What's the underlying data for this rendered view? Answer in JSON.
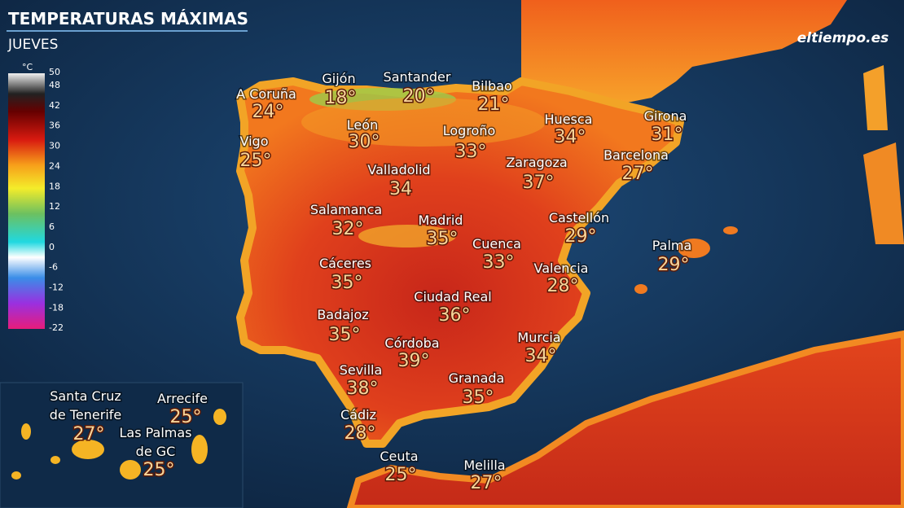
{
  "header": {
    "title": "TEMPERATURAS MÁXIMAS",
    "subtitle": "JUEVES",
    "logo": "eltiempo.es"
  },
  "legend": {
    "unit": "°C",
    "ticks": [
      50,
      48,
      42,
      36,
      30,
      24,
      18,
      12,
      6,
      0,
      -6,
      -12,
      -18,
      -22
    ]
  },
  "cities": [
    {
      "name": "A Coruña",
      "temp": "24°"
    },
    {
      "name": "Gijón",
      "temp": "18°"
    },
    {
      "name": "Santander",
      "temp": "20°"
    },
    {
      "name": "Bilbao",
      "temp": "21°"
    },
    {
      "name": "León",
      "temp": "30°"
    },
    {
      "name": "Logroño",
      "temp": "33°"
    },
    {
      "name": "Huesca",
      "temp": "34°"
    },
    {
      "name": "Girona",
      "temp": "31°"
    },
    {
      "name": "Vigo",
      "temp": "25°"
    },
    {
      "name": "Barcelona",
      "temp": "27°"
    },
    {
      "name": "Valladolid",
      "temp": "34"
    },
    {
      "name": "Zaragoza",
      "temp": "37°"
    },
    {
      "name": "Salamanca",
      "temp": "32°"
    },
    {
      "name": "Madrid",
      "temp": "35°"
    },
    {
      "name": "Castellón",
      "temp": "29°"
    },
    {
      "name": "Cuenca",
      "temp": "33°"
    },
    {
      "name": "Palma",
      "temp": "29°"
    },
    {
      "name": "Cáceres",
      "temp": "35°"
    },
    {
      "name": "Valencia",
      "temp": "28°"
    },
    {
      "name": "Ciudad Real",
      "temp": "36°"
    },
    {
      "name": "Badajoz",
      "temp": "35°"
    },
    {
      "name": "Córdoba",
      "temp": "39°"
    },
    {
      "name": "Murcia",
      "temp": "34°"
    },
    {
      "name": "Sevilla",
      "temp": "38°"
    },
    {
      "name": "Granada",
      "temp": "35°"
    },
    {
      "name": "Cádiz",
      "temp": "28°"
    },
    {
      "name": "Ceuta",
      "temp": "25°"
    },
    {
      "name": "Melilla",
      "temp": "27°"
    }
  ],
  "canarias": [
    {
      "name": [
        "Santa Cruz",
        "de Tenerife"
      ],
      "temp": "27°"
    },
    {
      "name": [
        "Arrecife"
      ],
      "temp": "25°"
    },
    {
      "name": [
        "Las Palmas",
        "de GC"
      ],
      "temp": "25°"
    }
  ]
}
